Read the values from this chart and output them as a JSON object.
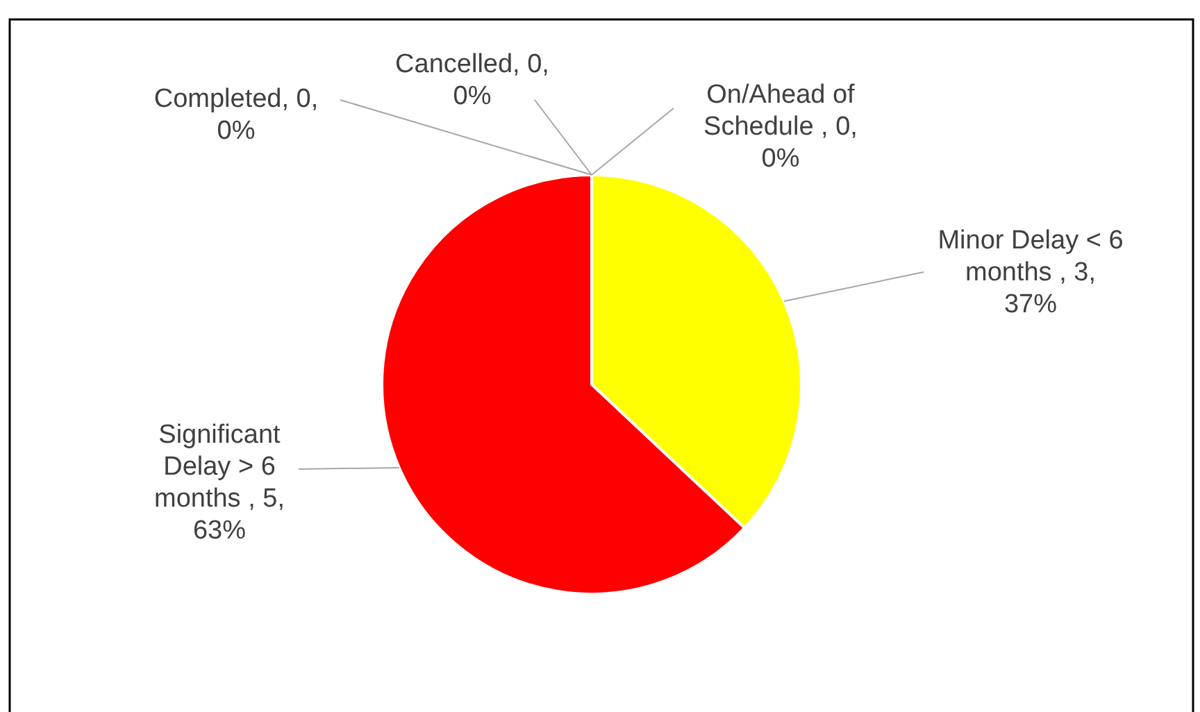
{
  "chart_data": {
    "type": "pie",
    "categories": [
      "Completed",
      "Cancelled",
      "On/Ahead of Schedule ",
      "Minor Delay < 6 months ",
      "Significant Delay > 6 months "
    ],
    "values": [
      0,
      0,
      0,
      37,
      63
    ],
    "colors": [
      "#4472c4",
      "#a5a5a5",
      "#70ad47",
      "#ffff00",
      "#ff0000"
    ],
    "value_labels": [
      ", 0, 0%",
      ", 0, 0%",
      ", 0, 0%",
      ", 3, 37%",
      ", 5, 63%"
    ]
  }
}
